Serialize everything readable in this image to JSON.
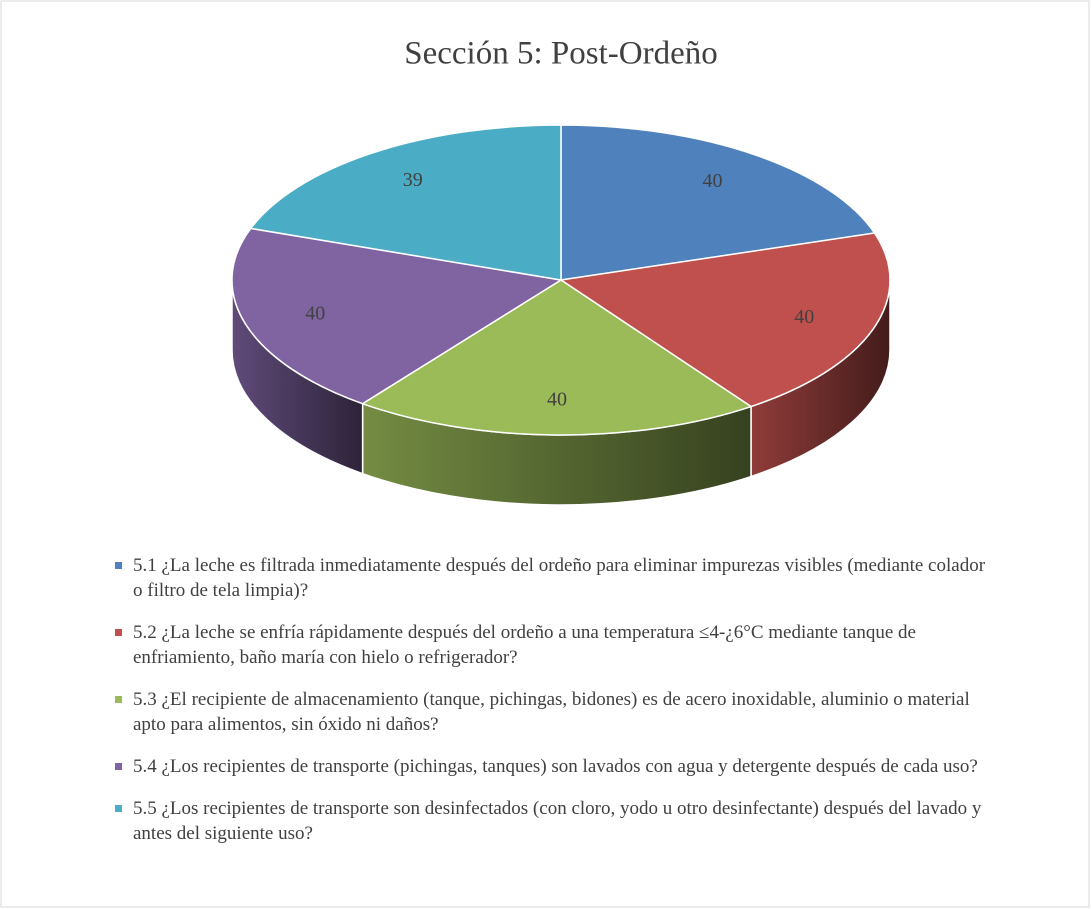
{
  "chart_data": {
    "type": "pie",
    "title": "Sección 5: Post-Ordeño",
    "categories": [
      "5.1 ¿La leche es filtrada inmediatamente después del ordeño para eliminar impurezas visibles (mediante colador o filtro de tela limpia)?",
      "5.2 ¿La leche se enfría rápidamente después del ordeño a una temperatura ≤4-¿6°C mediante tanque de enfriamiento, baño maría con hielo o refrigerador?",
      "5.3 ¿El recipiente de almacenamiento (tanque, pichingas, bidones) es de acero inoxidable, aluminio o material apto para alimentos, sin óxido ni daños?",
      "5.4 ¿Los recipientes de transporte (pichingas, tanques) son lavados con agua y detergente después de cada uso?",
      "5.5 ¿Los recipientes de transporte son desinfectados (con cloro, yodo u otro desinfectante) después del lavado y antes del siguiente uso?"
    ],
    "values": [
      40,
      40,
      40,
      40,
      39
    ],
    "colors": [
      "#4f81bd",
      "#c0504d",
      "#9bbb59",
      "#8064a2",
      "#4bacc6"
    ],
    "legend": "bottom"
  }
}
